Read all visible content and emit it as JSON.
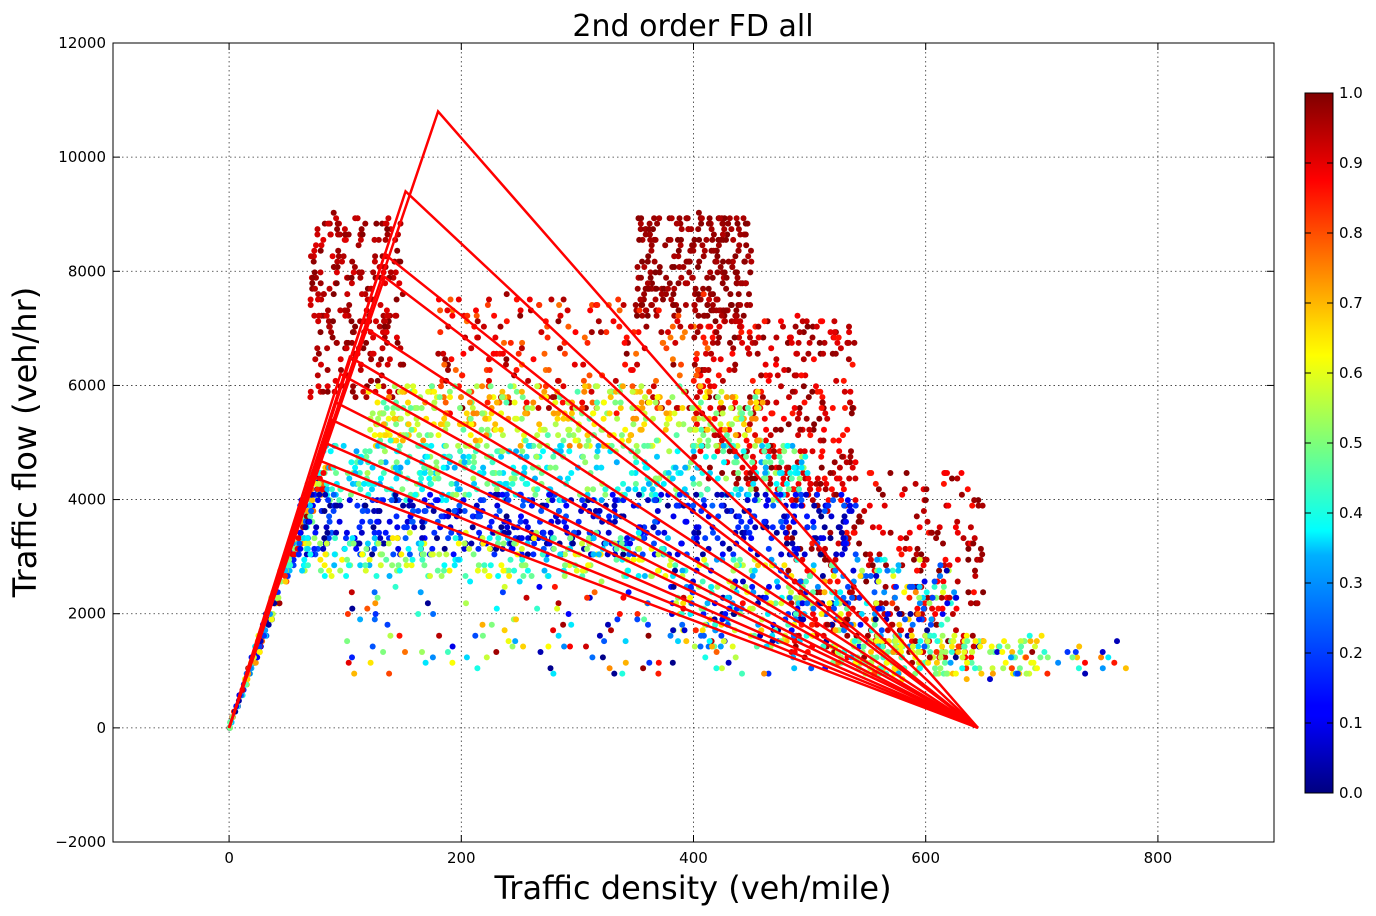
{
  "chart_data": {
    "type": "scatter",
    "title": "2nd order FD all",
    "xlabel": "Traffic density (veh/mile)",
    "ylabel": "Traffic flow (veh/hr)",
    "xlim": [
      -100,
      900
    ],
    "ylim": [
      -2000,
      12000
    ],
    "xticks": [
      0,
      200,
      400,
      600,
      800
    ],
    "yticks": [
      -2000,
      0,
      2000,
      4000,
      6000,
      8000,
      10000,
      12000
    ],
    "x_tick_labels": [
      "0",
      "200",
      "400",
      "600",
      "800"
    ],
    "y_tick_labels": [
      "−2000",
      "0",
      "2000",
      "4000",
      "6000",
      "8000",
      "10000",
      "12000"
    ],
    "grid": true,
    "colormap": "jet",
    "colorbar": {
      "range": [
        0.0,
        1.0
      ],
      "ticks": [
        "0.0",
        "0.1",
        "0.2",
        "0.3",
        "0.4",
        "0.5",
        "0.6",
        "0.7",
        "0.8",
        "0.9",
        "1.0"
      ]
    },
    "line_color": "#ff0000",
    "fd_lines": {
      "origin": [
        0,
        0
      ],
      "jam_density": 645,
      "peaks": [
        [
          180,
          10800
        ],
        [
          152,
          9400
        ],
        [
          134,
          8300
        ],
        [
          134,
          7900
        ],
        [
          118,
          7000
        ],
        [
          104,
          6500
        ],
        [
          96,
          6200
        ],
        [
          92,
          5700
        ],
        [
          88,
          5400
        ],
        [
          82,
          5000
        ],
        [
          76,
          4700
        ],
        [
          72,
          4400
        ]
      ]
    },
    "point_clusters": [
      {
        "x": [
          20,
          70
        ],
        "y": [
          0,
          4600
        ],
        "along": "free-flow",
        "v": [
          0.0,
          1.0
        ],
        "n": 260
      },
      {
        "x": [
          70,
          150
        ],
        "y": [
          5800,
          9000
        ],
        "v": [
          0.9,
          1.0
        ],
        "n": 240
      },
      {
        "x": [
          350,
          450
        ],
        "y": [
          7200,
          9000
        ],
        "v": [
          0.95,
          1.0
        ],
        "n": 260
      },
      {
        "x": [
          400,
          540
        ],
        "y": [
          4000,
          7200
        ],
        "v": [
          0.85,
          1.0
        ],
        "n": 320
      },
      {
        "x": [
          480,
          650
        ],
        "y": [
          1200,
          4500
        ],
        "v": [
          0.85,
          1.0
        ],
        "n": 300
      },
      {
        "x": [
          180,
          420
        ],
        "y": [
          5500,
          7600
        ],
        "v": [
          0.75,
          1.0
        ],
        "n": 220
      },
      {
        "x": [
          120,
          460
        ],
        "y": [
          4900,
          6000
        ],
        "v": [
          0.45,
          0.75
        ],
        "n": 380
      },
      {
        "x": [
          80,
          500
        ],
        "y": [
          4000,
          5000
        ],
        "v": [
          0.28,
          0.55
        ],
        "n": 420
      },
      {
        "x": [
          60,
          540
        ],
        "y": [
          3000,
          4100
        ],
        "v": [
          0.0,
          0.22
        ],
        "n": 520
      },
      {
        "x": [
          60,
          380
        ],
        "y": [
          2600,
          3400
        ],
        "v": [
          0.3,
          0.65
        ],
        "n": 220
      },
      {
        "x": [
          380,
          620
        ],
        "y": [
          1400,
          3000
        ],
        "v": [
          0.0,
          0.7
        ],
        "n": 300
      },
      {
        "x": [
          520,
          700
        ],
        "y": [
          900,
          1600
        ],
        "v": [
          0.4,
          0.7
        ],
        "n": 160
      },
      {
        "x": [
          100,
          640
        ],
        "y": [
          900,
          2500
        ],
        "v": [
          0.0,
          1.0
        ],
        "n": 200
      },
      {
        "x": [
          600,
          780
        ],
        "y": [
          900,
          1500
        ],
        "v": [
          0.0,
          1.0
        ],
        "n": 40
      }
    ]
  }
}
